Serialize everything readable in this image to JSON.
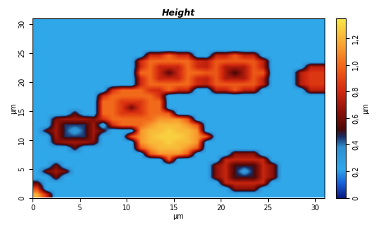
{
  "chart_data": {
    "type": "heatmap",
    "title": "Height",
    "x_label": "µm",
    "y_label": "µm",
    "xlim": [
      0,
      31
    ],
    "ylim": [
      0,
      31
    ],
    "xticks": [
      0,
      5,
      10,
      15,
      20,
      25,
      30
    ],
    "yticks": [
      0,
      5,
      10,
      15,
      20,
      25,
      30
    ],
    "colorbar": {
      "label": "µm",
      "range": [
        0,
        1.35
      ],
      "ticks": [
        0,
        {
          "value": 0.2,
          "label": "0,2"
        },
        {
          "value": 0.4,
          "label": "0,4"
        },
        {
          "value": 0.6,
          "label": "0,6"
        },
        {
          "value": 0.8,
          "label": "0,8"
        },
        {
          "value": 1.0,
          "label": "1,0"
        },
        {
          "value": 1.2,
          "label": "1,2"
        }
      ]
    },
    "cells": [
      [
        1.2,
        0.8,
        0.22,
        0.22,
        0.22,
        0.22,
        0.22,
        0.22,
        0.22,
        0.22,
        0.22,
        0.22,
        0.22,
        0.22,
        0.22,
        0.22,
        0.22,
        0.22,
        0.22,
        0.22,
        0.22,
        0.22,
        0.22,
        0.22,
        0.22,
        0.22,
        0.22,
        0.22,
        0.22,
        0.22,
        0.22
      ],
      [
        0.9,
        0.22,
        0.22,
        0.22,
        0.22,
        0.22,
        0.22,
        0.22,
        0.22,
        0.22,
        0.22,
        0.22,
        0.22,
        0.22,
        0.22,
        0.22,
        0.22,
        0.22,
        0.22,
        0.22,
        0.22,
        0.65,
        0.65,
        0.65,
        0.22,
        0.22,
        0.22,
        0.22,
        0.22,
        0.22,
        0.22
      ],
      [
        0.55,
        0.22,
        0.22,
        0.22,
        0.22,
        0.22,
        0.22,
        0.22,
        0.22,
        0.22,
        0.22,
        0.22,
        0.22,
        0.22,
        0.22,
        0.22,
        0.22,
        0.22,
        0.22,
        0.22,
        0.78,
        0.78,
        0.78,
        0.78,
        0.78,
        0.22,
        0.22,
        0.22,
        0.22,
        0.22,
        0.22
      ],
      [
        0.22,
        0.22,
        0.6,
        0.22,
        0.22,
        0.22,
        0.22,
        0.22,
        0.22,
        0.22,
        0.22,
        0.22,
        0.22,
        0.22,
        0.22,
        0.22,
        0.22,
        0.22,
        0.22,
        0.65,
        0.78,
        0.5,
        0.5,
        0.5,
        0.78,
        0.65,
        0.22,
        0.22,
        0.22,
        0.22,
        0.22
      ],
      [
        0.22,
        0.6,
        0.7,
        0.6,
        0.22,
        0.22,
        0.22,
        0.22,
        0.22,
        0.22,
        0.22,
        0.22,
        0.22,
        0.22,
        0.22,
        0.22,
        0.22,
        0.22,
        0.22,
        0.65,
        0.78,
        0.5,
        0.3,
        0.5,
        0.78,
        0.65,
        0.22,
        0.22,
        0.22,
        0.22,
        0.22
      ],
      [
        0.22,
        0.22,
        0.6,
        0.22,
        0.22,
        0.22,
        0.22,
        0.22,
        0.22,
        0.22,
        0.22,
        0.22,
        0.22,
        0.22,
        0.22,
        0.22,
        0.22,
        0.22,
        0.22,
        0.65,
        0.78,
        0.5,
        0.5,
        0.5,
        0.78,
        0.65,
        0.22,
        0.22,
        0.22,
        0.22,
        0.22
      ],
      [
        0.22,
        0.22,
        0.22,
        0.22,
        0.22,
        0.22,
        0.22,
        0.22,
        0.22,
        0.22,
        0.22,
        0.22,
        0.22,
        0.22,
        0.95,
        0.22,
        0.22,
        0.22,
        0.22,
        0.22,
        0.78,
        0.78,
        0.78,
        0.78,
        0.78,
        0.22,
        0.22,
        0.22,
        0.22,
        0.22,
        0.22
      ],
      [
        0.22,
        0.22,
        0.22,
        0.22,
        0.22,
        0.22,
        0.22,
        0.22,
        0.22,
        0.22,
        0.22,
        0.22,
        0.95,
        1.12,
        1.12,
        1.12,
        0.95,
        0.22,
        0.22,
        0.22,
        0.22,
        0.65,
        0.65,
        0.65,
        0.22,
        0.22,
        0.22,
        0.22,
        0.22,
        0.22,
        0.22
      ],
      [
        0.22,
        0.22,
        0.22,
        0.22,
        0.55,
        0.22,
        0.22,
        0.22,
        0.22,
        0.22,
        0.22,
        0.95,
        1.12,
        1.22,
        1.22,
        1.22,
        1.12,
        0.95,
        0.22,
        0.22,
        0.22,
        0.22,
        0.22,
        0.22,
        0.22,
        0.22,
        0.22,
        0.22,
        0.22,
        0.22,
        0.22
      ],
      [
        0.22,
        0.22,
        0.62,
        0.7,
        0.7,
        0.7,
        0.62,
        0.22,
        0.22,
        0.22,
        0.22,
        1.12,
        1.22,
        1.22,
        1.28,
        1.22,
        1.22,
        1.12,
        0.22,
        0.22,
        0.22,
        0.22,
        0.22,
        0.22,
        0.22,
        0.22,
        0.22,
        0.22,
        0.22,
        0.22,
        0.22
      ],
      [
        0.22,
        0.22,
        0.7,
        0.45,
        0.45,
        0.45,
        0.7,
        0.22,
        0.22,
        0.22,
        0.95,
        1.12,
        1.22,
        1.28,
        1.28,
        1.28,
        1.22,
        1.12,
        0.95,
        0.22,
        0.22,
        0.22,
        0.22,
        0.22,
        0.22,
        0.22,
        0.22,
        0.22,
        0.22,
        0.22,
        0.22
      ],
      [
        0.22,
        0.55,
        0.7,
        0.45,
        0.3,
        0.45,
        0.7,
        0.55,
        0.22,
        0.22,
        0.22,
        1.12,
        1.22,
        1.22,
        1.28,
        1.22,
        1.22,
        1.12,
        0.22,
        0.22,
        0.22,
        0.22,
        0.22,
        0.22,
        0.22,
        0.22,
        0.22,
        0.22,
        0.22,
        0.22,
        0.22
      ],
      [
        0.22,
        0.22,
        0.7,
        0.45,
        0.45,
        0.45,
        0.7,
        0.22,
        0.82,
        1,
        1,
        1,
        1.12,
        1.22,
        1.22,
        1.22,
        1.12,
        0.95,
        0.22,
        0.22,
        0.22,
        0.22,
        0.22,
        0.22,
        0.22,
        0.22,
        0.22,
        0.22,
        0.22,
        0.22,
        0.22
      ],
      [
        0.22,
        0.22,
        0.62,
        0.7,
        0.7,
        0.7,
        0.62,
        0.82,
        1,
        1,
        1,
        1,
        1,
        1.12,
        1.12,
        1.12,
        0.95,
        0.22,
        0.22,
        0.22,
        0.22,
        0.22,
        0.22,
        0.22,
        0.22,
        0.22,
        0.22,
        0.22,
        0.22,
        0.22,
        0.22
      ],
      [
        0.22,
        0.22,
        0.22,
        0.22,
        0.55,
        0.22,
        0.22,
        1,
        1,
        0.85,
        0.85,
        0.85,
        1,
        1,
        0.95,
        0.22,
        0.22,
        0.22,
        0.22,
        0.22,
        0.22,
        0.22,
        0.22,
        0.22,
        0.22,
        0.22,
        0.22,
        0.22,
        0.22,
        0.22,
        0.22
      ],
      [
        0.22,
        0.22,
        0.22,
        0.22,
        0.22,
        0.22,
        0.22,
        1,
        1,
        0.85,
        0.6,
        0.85,
        1,
        1,
        0.22,
        0.22,
        0.22,
        0.22,
        0.22,
        0.22,
        0.22,
        0.22,
        0.22,
        0.22,
        0.22,
        0.22,
        0.22,
        0.22,
        0.22,
        0.22,
        0.22
      ],
      [
        0.22,
        0.22,
        0.22,
        0.22,
        0.22,
        0.22,
        0.22,
        1,
        1,
        0.85,
        0.85,
        0.85,
        1,
        1,
        0.22,
        0.22,
        0.22,
        0.22,
        0.22,
        0.22,
        0.22,
        0.22,
        0.22,
        0.22,
        0.22,
        0.22,
        0.22,
        0.22,
        0.22,
        0.22,
        0.22
      ],
      [
        0.22,
        0.22,
        0.22,
        0.22,
        0.22,
        0.22,
        0.22,
        0.82,
        1,
        1,
        1,
        1,
        1,
        0.82,
        0.22,
        0.22,
        0.22,
        0.22,
        0.22,
        0.22,
        0.22,
        0.22,
        0.22,
        0.22,
        0.22,
        0.22,
        0.22,
        0.22,
        0.22,
        0.22,
        0.22
      ],
      [
        0.22,
        0.22,
        0.22,
        0.22,
        0.22,
        0.22,
        0.22,
        0.22,
        0.82,
        1,
        1,
        1,
        0.82,
        0.8,
        1,
        0.8,
        0.8,
        0.22,
        0.22,
        0.76,
        0.76,
        0.95,
        0.76,
        0.76,
        0.22,
        0.22,
        0.22,
        0.22,
        0.22,
        0.75,
        0.75
      ],
      [
        0.22,
        0.22,
        0.22,
        0.22,
        0.22,
        0.22,
        0.22,
        0.22,
        0.22,
        0.22,
        0.22,
        0.8,
        1,
        1,
        1,
        1,
        1,
        0.8,
        0.76,
        0.95,
        0.95,
        0.95,
        0.95,
        0.95,
        0.76,
        0.22,
        0.22,
        0.22,
        0.75,
        0.85,
        0.85
      ],
      [
        0.22,
        0.22,
        0.22,
        0.22,
        0.22,
        0.22,
        0.22,
        0.22,
        0.22,
        0.22,
        0.22,
        0.8,
        1,
        0.78,
        0.78,
        0.78,
        1,
        0.8,
        0.76,
        0.95,
        0.72,
        0.72,
        0.72,
        0.95,
        0.76,
        0.22,
        0.22,
        0.22,
        0.75,
        0.85,
        0.85
      ],
      [
        0.22,
        0.22,
        0.22,
        0.22,
        0.22,
        0.22,
        0.22,
        0.22,
        0.22,
        0.22,
        0.22,
        1,
        1,
        0.78,
        0.55,
        0.78,
        1,
        1,
        0.95,
        0.95,
        0.72,
        0.5,
        0.72,
        0.95,
        0.95,
        0.22,
        0.22,
        0.22,
        0.75,
        0.85,
        0.85
      ],
      [
        0.22,
        0.22,
        0.22,
        0.22,
        0.22,
        0.22,
        0.22,
        0.22,
        0.22,
        0.22,
        0.22,
        0.8,
        1,
        0.78,
        0.78,
        0.78,
        1,
        0.8,
        0.76,
        0.95,
        0.72,
        0.72,
        0.72,
        0.95,
        0.76,
        0.22,
        0.22,
        0.22,
        0.22,
        0.75,
        0.75
      ],
      [
        0.22,
        0.22,
        0.22,
        0.22,
        0.22,
        0.22,
        0.22,
        0.22,
        0.22,
        0.22,
        0.22,
        0.8,
        1,
        1,
        1,
        1,
        1,
        0.8,
        0.76,
        0.95,
        0.95,
        0.95,
        0.95,
        0.95,
        0.76,
        0.22,
        0.22,
        0.22,
        0.22,
        0.22,
        0.22
      ],
      [
        0.22,
        0.22,
        0.22,
        0.22,
        0.22,
        0.22,
        0.22,
        0.22,
        0.22,
        0.22,
        0.22,
        0.22,
        0.8,
        0.8,
        1,
        0.8,
        0.8,
        0.22,
        0.22,
        0.76,
        0.76,
        0.95,
        0.76,
        0.76,
        0.22,
        0.22,
        0.22,
        0.22,
        0.22,
        0.22,
        0.22
      ],
      [
        0.22,
        0.22,
        0.22,
        0.22,
        0.22,
        0.22,
        0.22,
        0.22,
        0.22,
        0.22,
        0.22,
        0.22,
        0.22,
        0.22,
        0.22,
        0.22,
        0.22,
        0.22,
        0.22,
        0.22,
        0.22,
        0.22,
        0.22,
        0.22,
        0.22,
        0.22,
        0.22,
        0.22,
        0.22,
        0.22,
        0.22
      ],
      [
        0.22,
        0.22,
        0.22,
        0.22,
        0.22,
        0.22,
        0.22,
        0.22,
        0.22,
        0.22,
        0.22,
        0.22,
        0.22,
        0.22,
        0.22,
        0.22,
        0.22,
        0.22,
        0.22,
        0.22,
        0.22,
        0.22,
        0.22,
        0.22,
        0.22,
        0.22,
        0.22,
        0.22,
        0.22,
        0.22,
        0.22
      ],
      [
        0.22,
        0.22,
        0.22,
        0.22,
        0.22,
        0.22,
        0.22,
        0.22,
        0.22,
        0.22,
        0.22,
        0.22,
        0.22,
        0.22,
        0.22,
        0.22,
        0.22,
        0.22,
        0.22,
        0.22,
        0.22,
        0.22,
        0.22,
        0.22,
        0.22,
        0.22,
        0.22,
        0.22,
        0.22,
        0.22,
        0.22
      ],
      [
        0.22,
        0.22,
        0.22,
        0.22,
        0.22,
        0.22,
        0.22,
        0.22,
        0.22,
        0.22,
        0.22,
        0.22,
        0.22,
        0.22,
        0.22,
        0.22,
        0.22,
        0.22,
        0.22,
        0.22,
        0.22,
        0.22,
        0.22,
        0.22,
        0.22,
        0.22,
        0.22,
        0.22,
        0.22,
        0.22,
        0.22
      ],
      [
        0.22,
        0.22,
        0.22,
        0.22,
        0.22,
        0.22,
        0.22,
        0.22,
        0.22,
        0.22,
        0.22,
        0.22,
        0.22,
        0.22,
        0.22,
        0.22,
        0.22,
        0.22,
        0.22,
        0.22,
        0.22,
        0.22,
        0.22,
        0.22,
        0.22,
        0.22,
        0.22,
        0.22,
        0.22,
        0.22,
        0.22
      ],
      [
        0.22,
        0.22,
        0.22,
        0.22,
        0.22,
        0.22,
        0.22,
        0.22,
        0.22,
        0.22,
        0.22,
        0.22,
        0.22,
        0.22,
        0.22,
        0.22,
        0.22,
        0.22,
        0.22,
        0.22,
        0.22,
        0.22,
        0.22,
        0.22,
        0.22,
        0.22,
        0.22,
        0.22,
        0.22,
        0.22,
        0.22
      ]
    ]
  }
}
